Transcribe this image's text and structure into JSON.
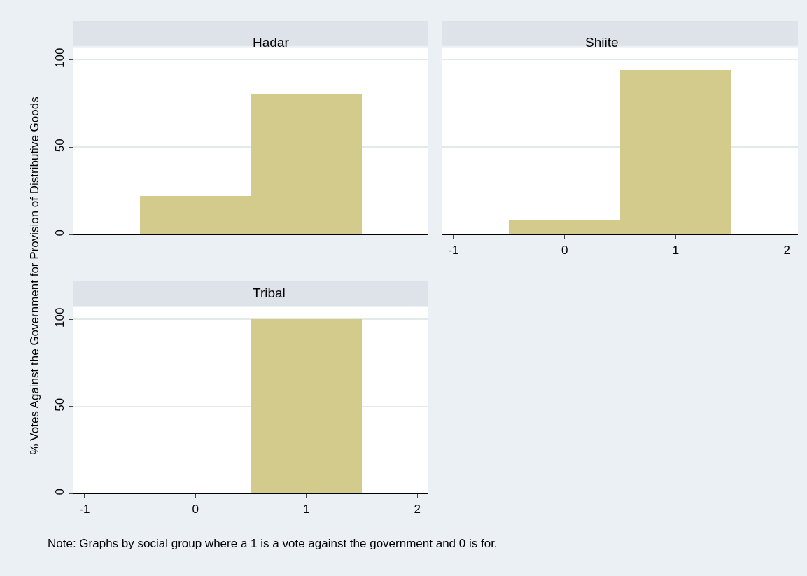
{
  "chart_data": [
    {
      "type": "histogram",
      "title": "Hadar",
      "ylabel": "% Votes Against the Government for Provision of Distributive Goods",
      "bins": [
        -0.5,
        0.5,
        1.5
      ],
      "values": [
        22,
        80
      ],
      "color": "#d3cb8c",
      "xlim": [
        -1.1,
        2.1
      ],
      "xticks": [
        -1,
        0,
        1,
        2
      ],
      "ylim": [
        0,
        107
      ],
      "yticks": [
        0,
        50,
        100
      ],
      "grid": "y",
      "tick_labels": "y"
    },
    {
      "type": "histogram",
      "title": "Shiite",
      "bins": [
        -0.5,
        0.5,
        1.5
      ],
      "values": [
        8,
        94
      ],
      "color": "#d3cb8c",
      "xlim": [
        -1.1,
        2.1
      ],
      "xticks": [
        -1,
        0,
        1,
        2
      ],
      "ylim": [
        0,
        107
      ],
      "yticks": [
        0,
        50,
        100
      ],
      "grid": "y",
      "tick_labels": "x"
    },
    {
      "type": "histogram",
      "title": "Tribal",
      "bins": [
        -0.5,
        0.5,
        1.5
      ],
      "values": [
        0,
        100
      ],
      "color": "#d3cb8c",
      "xlim": [
        -1.1,
        2.1
      ],
      "xticks": [
        -1,
        0,
        1,
        2
      ],
      "ylim": [
        0,
        107
      ],
      "yticks": [
        0,
        50,
        100
      ],
      "grid": "y",
      "annotations": [
        "Note: Graphs by social group where a 1 is a vote against the government and 0 is for."
      ]
    }
  ]
}
